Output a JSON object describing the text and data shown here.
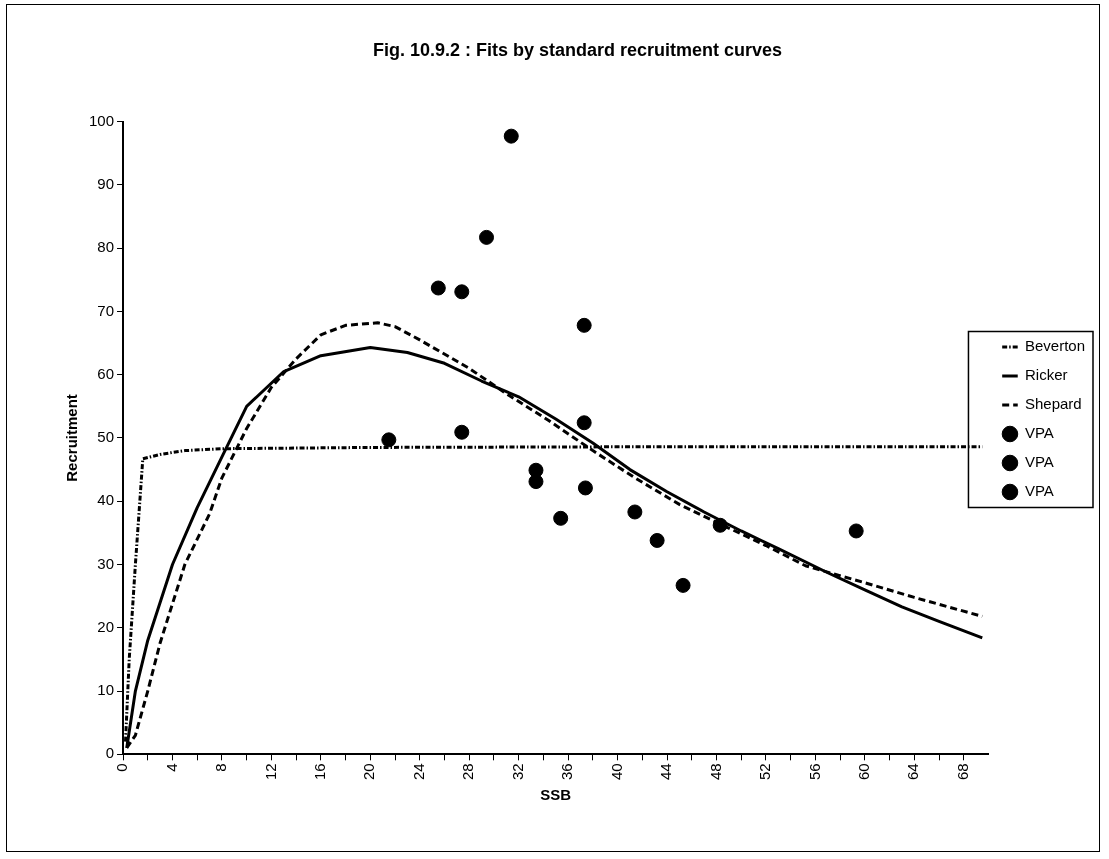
{
  "chart_data": {
    "type": "line",
    "title": "Fig. 10.9.2 : Fits by standard recruitment curves",
    "xlabel": "SSB",
    "ylabel": "Recruitment",
    "xlim": [
      0,
      70
    ],
    "xticks": [
      0,
      {
        "value": 2,
        "label": null
      },
      4,
      {
        "value": 6,
        "label": null
      },
      8,
      {
        "value": 10,
        "label": null
      },
      12,
      {
        "value": 14,
        "label": null
      },
      16,
      {
        "value": 18,
        "label": null
      },
      20,
      {
        "value": 22,
        "label": null
      },
      24,
      {
        "value": 26,
        "label": null
      },
      28,
      {
        "value": 30,
        "label": null
      },
      32,
      {
        "value": 34,
        "label": null
      },
      36,
      {
        "value": 38,
        "label": null
      },
      40,
      {
        "value": 42,
        "label": null
      },
      44,
      {
        "value": 46,
        "label": null
      },
      48,
      {
        "value": 50,
        "label": null
      },
      52,
      {
        "value": 54,
        "label": null
      },
      56,
      {
        "value": 58,
        "label": null
      },
      60,
      {
        "value": 62,
        "label": null
      },
      64,
      {
        "value": 66,
        "label": null
      },
      68
    ],
    "ylim": [
      0,
      100
    ],
    "yticks": [
      0,
      10,
      20,
      30,
      40,
      50,
      60,
      70,
      80,
      90,
      100
    ],
    "grid": false,
    "legend": "right",
    "marker": "none",
    "series": [
      {
        "name": "Beverton",
        "line_style": "dotted",
        "color": "#000000",
        "x": [
          0.2,
          0.5,
          1,
          1.6,
          3,
          5,
          8,
          20,
          40,
          69.5
        ],
        "values": [
          2,
          15,
          30,
          46.7,
          47.4,
          48,
          48.3,
          48.5,
          48.6,
          48.6
        ]
      },
      {
        "name": "Ricker",
        "line_style": "solid",
        "color": "#000000",
        "x": [
          0.3,
          1,
          2,
          4,
          6,
          8,
          10,
          13,
          16,
          20,
          23,
          26,
          29,
          32,
          35,
          38,
          41,
          44,
          47,
          50,
          53,
          57,
          60,
          63,
          66,
          69.5
        ],
        "values": [
          1,
          10,
          18,
          30,
          39,
          47,
          55,
          60.5,
          63,
          64.3,
          63.5,
          61.8,
          59,
          56.5,
          53,
          49.2,
          45,
          41.5,
          38.3,
          35.3,
          32.5,
          28.7,
          26,
          23.3,
          21,
          18.4
        ]
      },
      {
        "name": "Shepard",
        "line_style": "dashed",
        "color": "#000000",
        "x": [
          0.3,
          1,
          2,
          3,
          5,
          7,
          8,
          10,
          12,
          14,
          16,
          18,
          20.6,
          22,
          24,
          28,
          31,
          34.4,
          38,
          41.4,
          45,
          48.3,
          52,
          55.2,
          60.2,
          64,
          69.5
        ],
        "values": [
          1,
          3,
          10,
          17.6,
          30,
          38,
          43.7,
          51.5,
          58,
          62.5,
          66.3,
          67.8,
          68.2,
          67.6,
          65.5,
          61,
          57,
          52.8,
          48,
          43.7,
          39.5,
          36.4,
          33,
          29.8,
          27,
          24.8,
          21.8
        ]
      },
      {
        "name": "VPA",
        "type": "scatter",
        "marker": "circle",
        "color": "#000000",
        "x": [
          31.4,
          29.4,
          25.5,
          27.4,
          37.3,
          27.4
        ],
        "values": [
          97.7,
          81.7,
          73.7,
          73.1,
          67.8,
          50.9
        ]
      },
      {
        "name": "VPA",
        "type": "scatter",
        "marker": "circle",
        "color": "#000000",
        "x": [
          21.5,
          37.3,
          33.4,
          33.4,
          37.4,
          35.4
        ],
        "values": [
          49.7,
          52.4,
          44.9,
          43.1,
          42.1,
          37.3
        ]
      },
      {
        "name": "VPA",
        "type": "scatter",
        "marker": "circle",
        "color": "#000000",
        "x": [
          41.4,
          43.2,
          45.3,
          59.3,
          48.3
        ],
        "values": [
          38.3,
          33.8,
          26.7,
          35.3,
          36.2
        ]
      }
    ]
  }
}
